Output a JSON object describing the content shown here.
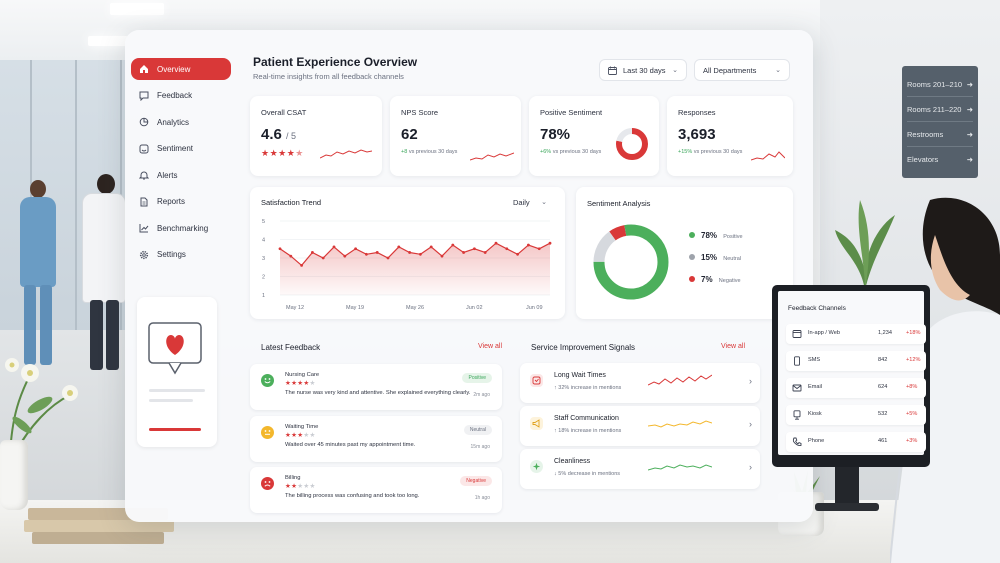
{
  "sidebar": {
    "items": [
      {
        "label": "Overview",
        "icon": "home-icon",
        "active": true
      },
      {
        "label": "Feedback",
        "icon": "chat-icon",
        "active": false
      },
      {
        "label": "Analytics",
        "icon": "analytics-icon",
        "active": false
      },
      {
        "label": "Sentiment",
        "icon": "sentiment-icon",
        "active": false
      },
      {
        "label": "Alerts",
        "icon": "bell-icon",
        "active": false
      },
      {
        "label": "Reports",
        "icon": "document-icon",
        "active": false
      },
      {
        "label": "Benchmarking",
        "icon": "chart-icon",
        "active": false
      },
      {
        "label": "Settings",
        "icon": "gear-icon",
        "active": false
      }
    ]
  },
  "header": {
    "title": "Patient Experience Overview",
    "subtitle": "Real-time insights from all feedback channels",
    "date_range": "Last 30 days",
    "department": "All Departments"
  },
  "kpis": {
    "csat": {
      "label": "Overall CSAT",
      "value": "4.6",
      "suffix": "/ 5",
      "rating": 4.5
    },
    "nps": {
      "label": "NPS Score",
      "value": "62",
      "delta": "+8",
      "delta_note": "vs previous 30 days"
    },
    "sentiment": {
      "label": "Positive Sentiment",
      "value": "78%",
      "delta": "+6%",
      "delta_note": "vs previous 30 days",
      "positive_share": 0.78
    },
    "responses": {
      "label": "Responses",
      "value": "3,693",
      "delta": "+15%",
      "delta_note": "vs previous 30 days"
    }
  },
  "trend": {
    "title": "Satisfaction Trend",
    "interval": "Daily"
  },
  "chart_data": {
    "type": "area",
    "title": "Satisfaction Trend",
    "x_ticks": [
      "May 12",
      "May 19",
      "May 26",
      "Jun 02",
      "Jun 09"
    ],
    "y_ticks": [
      "5",
      "4",
      "3",
      "2",
      "1"
    ],
    "ylim": [
      1,
      5
    ],
    "values": [
      3.5,
      3.1,
      2.6,
      3.3,
      3.0,
      3.6,
      3.1,
      3.5,
      3.2,
      3.3,
      3.0,
      3.6,
      3.3,
      3.2,
      3.6,
      3.1,
      3.7,
      3.3,
      3.5,
      3.3,
      3.8,
      3.5,
      3.2,
      3.7,
      3.5,
      3.8
    ],
    "color": "#d93838"
  },
  "sentiment_analysis": {
    "title": "Sentiment Analysis",
    "segments": [
      {
        "value": "78%",
        "label": "Positive",
        "share": 0.78,
        "color": "#4caf5c"
      },
      {
        "value": "15%",
        "label": "Neutral",
        "share": 0.15,
        "color": "#d6d9de"
      },
      {
        "value": "7%",
        "label": "Negative",
        "share": 0.07,
        "color": "#d93838"
      }
    ]
  },
  "latest_feedback": {
    "title": "Latest Feedback",
    "view_all": "View all",
    "items": [
      {
        "category": "Nursing Care",
        "rating": 4,
        "text": "The nurse was very kind and attentive. She explained everything clearly.",
        "badge": "Positive",
        "time": "2m ago",
        "face": "#4caf5c"
      },
      {
        "category": "Waiting Time",
        "rating": 3,
        "text": "Waited over 45 minutes past my appointment time.",
        "badge": "Neutral",
        "time": "15m ago",
        "face": "#f3b72c"
      },
      {
        "category": "Billing",
        "rating": 2,
        "text": "The billing process was confusing and took too long.",
        "badge": "Negative",
        "time": "1h ago",
        "face": "#d93838"
      }
    ]
  },
  "signals": {
    "title": "Service Improvement Signals",
    "view_all": "View all",
    "items": [
      {
        "name": "Long Wait Times",
        "note": "↑ 32% increase in mentions",
        "color": "#d93838"
      },
      {
        "name": "Staff Communication",
        "note": "↑ 18% increase in mentions",
        "color": "#f3b72c"
      },
      {
        "name": "Cleanliness",
        "note": "↓ 5% decrease in mentions",
        "color": "#4caf5c"
      }
    ]
  },
  "monitor": {
    "title": "Feedback Channels",
    "channels": [
      {
        "name": "In-app / Web",
        "count": "1,234",
        "delta": "+18%",
        "icon": "browser-icon"
      },
      {
        "name": "SMS",
        "count": "842",
        "delta": "+12%",
        "icon": "sms-icon"
      },
      {
        "name": "Email",
        "count": "624",
        "delta": "+8%",
        "icon": "email-icon"
      },
      {
        "name": "Kiosk",
        "count": "532",
        "delta": "+5%",
        "icon": "kiosk-icon"
      },
      {
        "name": "Phone",
        "count": "461",
        "delta": "+3%",
        "icon": "phone-icon"
      }
    ]
  },
  "wall_sign": {
    "rows": [
      "Rooms 201–210",
      "Rooms 211–220",
      "Restrooms",
      "Elevators"
    ]
  }
}
